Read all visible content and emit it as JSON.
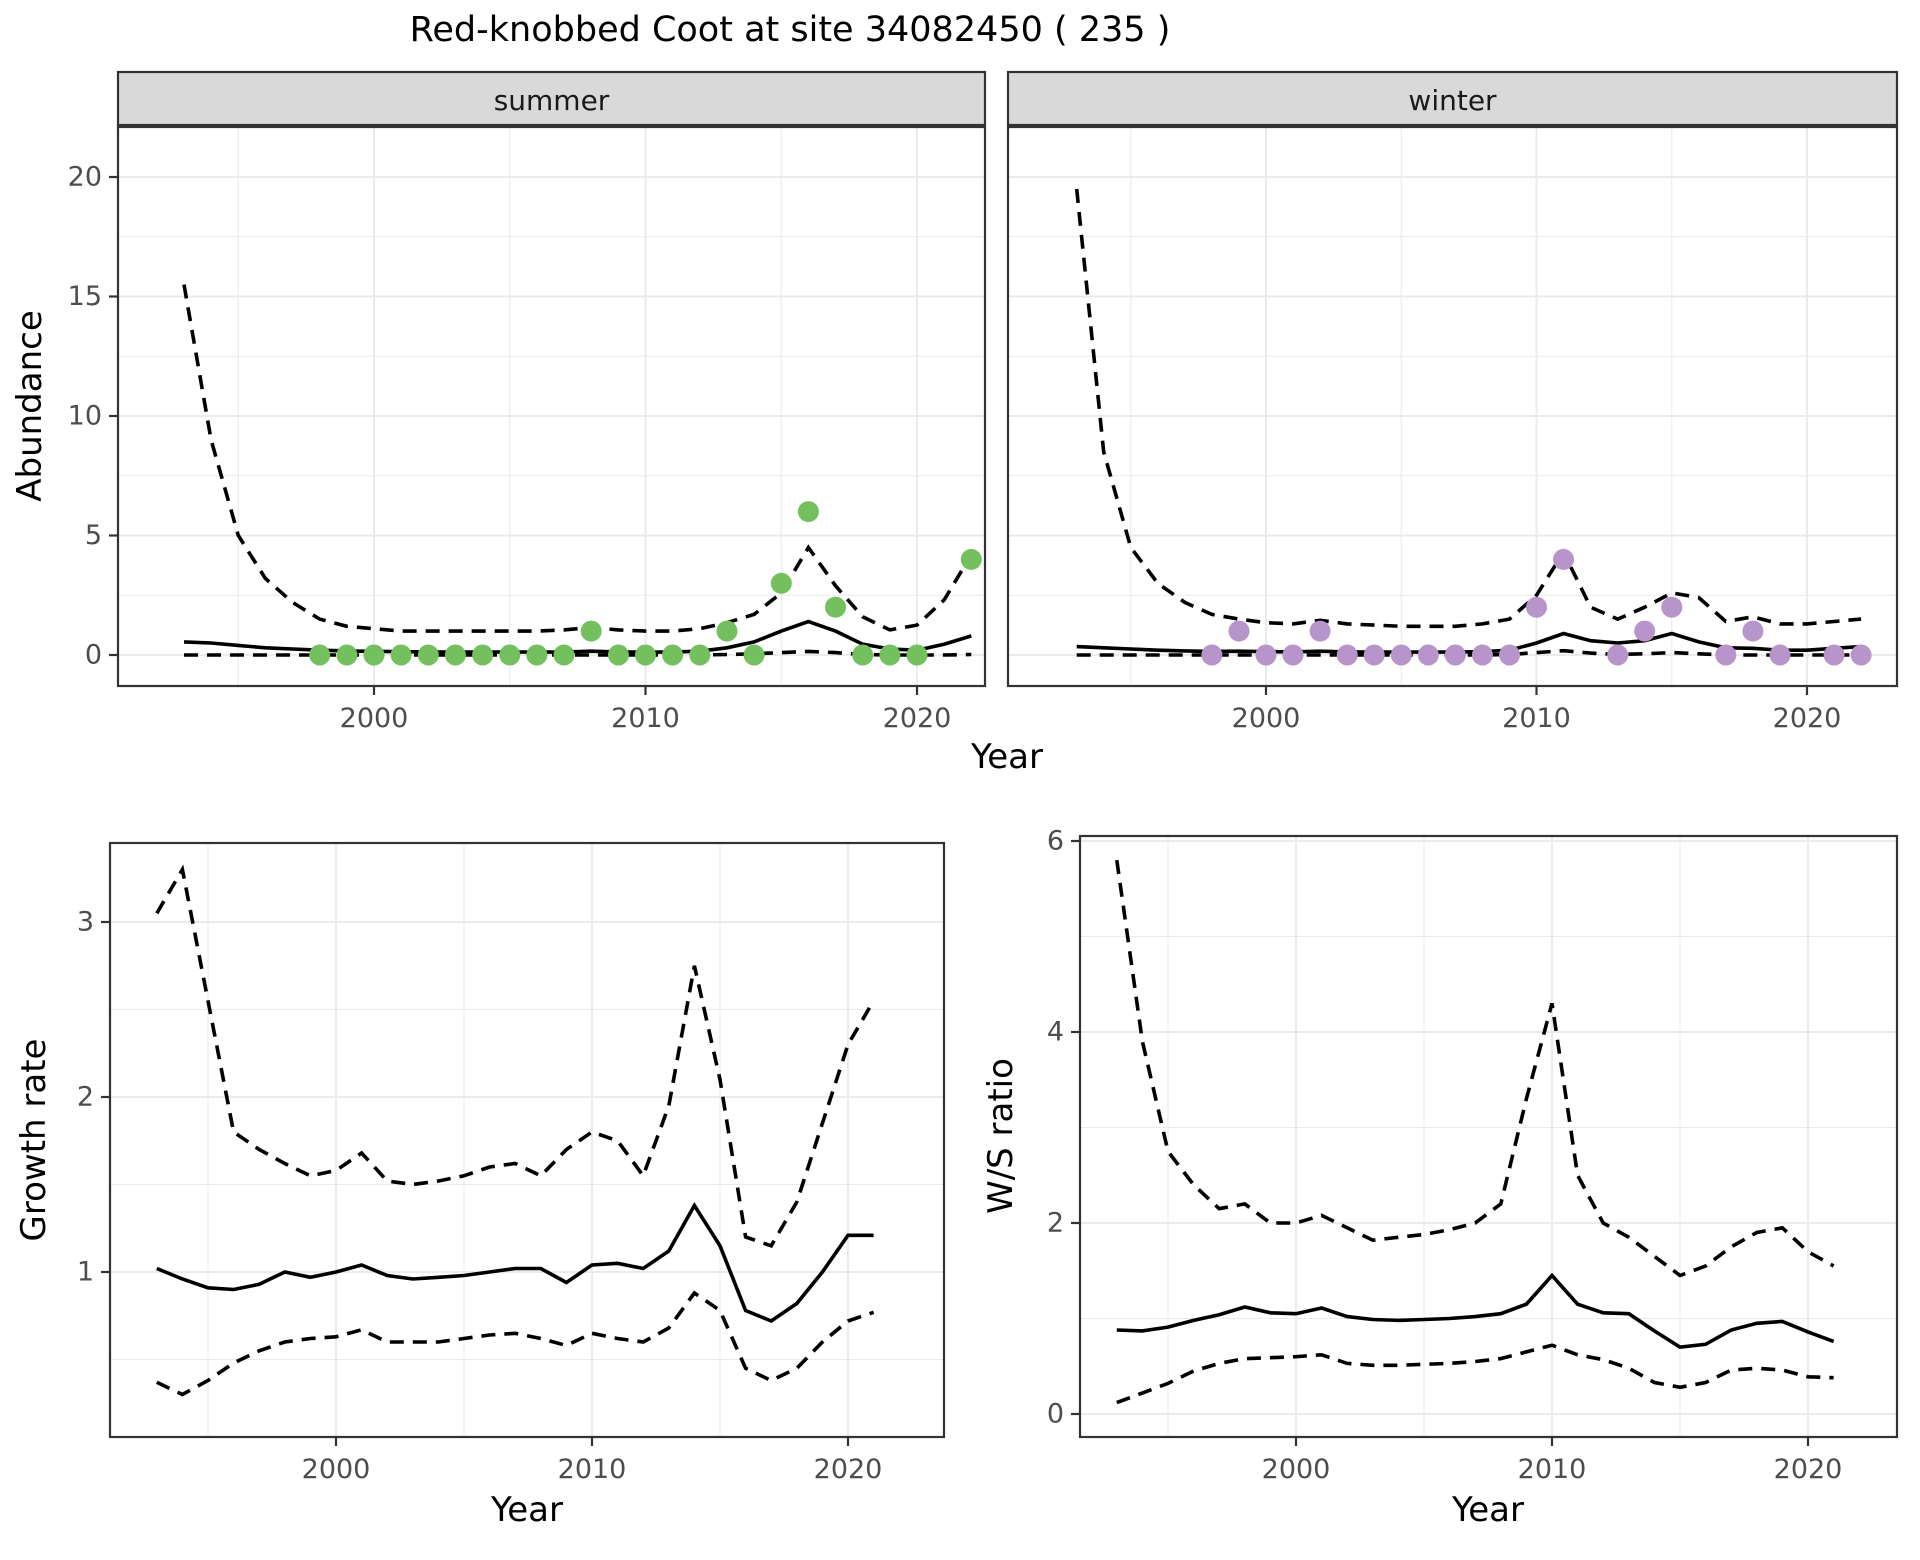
{
  "title": "Red-knobbed Coot at site 34082450 ( 235 )",
  "labels": {
    "abundance": "Abundance",
    "year": "Year",
    "growth": "Growth rate",
    "ws": "W/S ratio"
  },
  "facets": {
    "summer": "summer",
    "winter": "winter"
  },
  "axes": {
    "abundance_y": [
      "0",
      "5",
      "10",
      "15",
      "20"
    ],
    "year_x": [
      "2000",
      "2010",
      "2020"
    ],
    "growth_y": [
      "1",
      "2",
      "3"
    ],
    "ws_y": [
      "0",
      "2",
      "4",
      "6"
    ]
  },
  "colors": {
    "summer_point": "#74c05e",
    "winter_point": "#b795cb",
    "line": "#000000",
    "strip_fill": "#d9d9d9",
    "panel_border": "#333333",
    "grid": "#ebebeb",
    "tick_text": "#4d4d4d",
    "background": "#ffffff"
  },
  "chart_data": [
    {
      "type": "line",
      "facet": "summer",
      "title": "Abundance - summer",
      "xlabel": "Year",
      "ylabel": "Abundance",
      "ylim": [
        -0.8,
        22.1
      ],
      "xlim": [
        1991,
        2023
      ],
      "grid": true,
      "legend": "none",
      "years": [
        1993,
        1994,
        1995,
        1996,
        1997,
        1998,
        1999,
        2000,
        2001,
        2002,
        2003,
        2004,
        2005,
        2006,
        2007,
        2008,
        2009,
        2010,
        2011,
        2012,
        2013,
        2014,
        2015,
        2016,
        2017,
        2018,
        2019,
        2020,
        2021,
        2022
      ],
      "series": [
        {
          "name": "modelled mean",
          "style": "solid",
          "values": [
            0.55,
            0.5,
            0.4,
            0.3,
            0.25,
            0.2,
            0.17,
            0.15,
            0.14,
            0.13,
            0.12,
            0.12,
            0.12,
            0.12,
            0.12,
            0.16,
            0.13,
            0.12,
            0.12,
            0.16,
            0.3,
            0.55,
            1.0,
            1.4,
            1.0,
            0.45,
            0.25,
            0.2,
            0.45,
            0.8
          ]
        },
        {
          "name": "upper 95% CI",
          "style": "dashed",
          "values": [
            15.5,
            9.0,
            5.0,
            3.2,
            2.2,
            1.5,
            1.2,
            1.1,
            1.0,
            1.0,
            1.0,
            1.0,
            1.0,
            1.0,
            1.05,
            1.15,
            1.05,
            1.0,
            1.0,
            1.1,
            1.35,
            1.7,
            2.6,
            4.5,
            2.9,
            1.6,
            1.05,
            1.25,
            2.3,
            4.2
          ]
        },
        {
          "name": "lower 95% CI",
          "style": "dashed",
          "values": [
            0,
            0,
            0,
            0,
            0,
            0,
            0,
            0,
            0,
            0,
            0,
            0,
            0,
            0,
            0,
            0,
            0,
            0,
            0,
            0,
            0.02,
            0.05,
            0.1,
            0.15,
            0.1,
            0.02,
            0,
            0,
            0,
            0.02
          ]
        }
      ],
      "points": {
        "name": "observed counts",
        "color_key": "summer_point",
        "years": [
          1998,
          1999,
          2000,
          2001,
          2002,
          2003,
          2004,
          2005,
          2006,
          2007,
          2008,
          2009,
          2010,
          2011,
          2012,
          2013,
          2014,
          2015,
          2016,
          2017,
          2018,
          2019,
          2020,
          2022
        ],
        "values": [
          0,
          0,
          0,
          0,
          0,
          0,
          0,
          0,
          0,
          0,
          1,
          0,
          0,
          0,
          0,
          1,
          0,
          3,
          6,
          2,
          0,
          0,
          0,
          4
        ]
      }
    },
    {
      "type": "line",
      "facet": "winter",
      "title": "Abundance - winter",
      "xlabel": "Year",
      "ylabel": "Abundance",
      "ylim": [
        -0.8,
        22.1
      ],
      "xlim": [
        1991,
        2023
      ],
      "grid": true,
      "legend": "none",
      "years": [
        1993,
        1994,
        1995,
        1996,
        1997,
        1998,
        1999,
        2000,
        2001,
        2002,
        2003,
        2004,
        2005,
        2006,
        2007,
        2008,
        2009,
        2010,
        2011,
        2012,
        2013,
        2014,
        2015,
        2016,
        2017,
        2018,
        2019,
        2020,
        2021,
        2022
      ],
      "series": [
        {
          "name": "modelled mean",
          "style": "solid",
          "values": [
            0.35,
            0.3,
            0.25,
            0.2,
            0.17,
            0.15,
            0.16,
            0.14,
            0.13,
            0.16,
            0.13,
            0.12,
            0.12,
            0.12,
            0.12,
            0.14,
            0.2,
            0.5,
            0.9,
            0.6,
            0.5,
            0.6,
            0.9,
            0.55,
            0.3,
            0.28,
            0.2,
            0.2,
            0.28,
            0.35
          ]
        },
        {
          "name": "upper 95% CI",
          "style": "dashed",
          "values": [
            19.5,
            8.5,
            4.5,
            3.0,
            2.2,
            1.7,
            1.5,
            1.35,
            1.3,
            1.45,
            1.3,
            1.25,
            1.2,
            1.2,
            1.2,
            1.3,
            1.5,
            2.5,
            4.3,
            2.0,
            1.5,
            2.0,
            2.6,
            2.4,
            1.4,
            1.6,
            1.3,
            1.3,
            1.4,
            1.5
          ]
        },
        {
          "name": "lower 95% CI",
          "style": "dashed",
          "values": [
            0,
            0,
            0,
            0,
            0,
            0,
            0,
            0,
            0,
            0,
            0,
            0,
            0,
            0,
            0,
            0,
            0.02,
            0.1,
            0.18,
            0.08,
            0.02,
            0.05,
            0.1,
            0.05,
            0,
            0,
            0,
            0,
            0,
            0
          ]
        }
      ],
      "points": {
        "name": "observed counts",
        "color_key": "winter_point",
        "years": [
          1998,
          1999,
          2000,
          2001,
          2002,
          2003,
          2004,
          2005,
          2006,
          2007,
          2008,
          2009,
          2010,
          2011,
          2013,
          2014,
          2015,
          2017,
          2018,
          2019,
          2021,
          2022
        ],
        "values": [
          0,
          1,
          0,
          0,
          1,
          0,
          0,
          0,
          0,
          0,
          0,
          0,
          2,
          4,
          0,
          1,
          2,
          0,
          1,
          0,
          0,
          0
        ]
      }
    },
    {
      "type": "line",
      "facet": null,
      "title": "Growth rate",
      "xlabel": "Year",
      "ylabel": "Growth rate",
      "ylim": [
        0.06,
        3.45
      ],
      "xlim": [
        1991.2,
        2023.7
      ],
      "grid": true,
      "legend": "none",
      "years": [
        1993,
        1994,
        1995,
        1996,
        1997,
        1998,
        1999,
        2000,
        2001,
        2002,
        2003,
        2004,
        2005,
        2006,
        2007,
        2008,
        2009,
        2010,
        2011,
        2012,
        2013,
        2014,
        2015,
        2016,
        2017,
        2018,
        2019,
        2020,
        2021
      ],
      "series": [
        {
          "name": "modelled mean",
          "style": "solid",
          "values": [
            1.02,
            0.96,
            0.91,
            0.9,
            0.93,
            1.0,
            0.97,
            1.0,
            1.04,
            0.98,
            0.96,
            0.97,
            0.98,
            1.0,
            1.02,
            1.02,
            0.94,
            1.04,
            1.05,
            1.02,
            1.12,
            1.38,
            1.15,
            0.78,
            0.72,
            0.82,
            1.0,
            1.21,
            1.21
          ]
        },
        {
          "name": "upper 95% CI",
          "style": "dashed",
          "values": [
            3.05,
            3.3,
            2.55,
            1.8,
            1.7,
            1.62,
            1.55,
            1.58,
            1.68,
            1.52,
            1.5,
            1.52,
            1.55,
            1.6,
            1.62,
            1.55,
            1.7,
            1.8,
            1.75,
            1.55,
            1.95,
            2.75,
            2.1,
            1.2,
            1.15,
            1.4,
            1.85,
            2.3,
            2.55
          ]
        },
        {
          "name": "lower 95% CI",
          "style": "dashed",
          "values": [
            0.37,
            0.3,
            0.38,
            0.48,
            0.55,
            0.6,
            0.62,
            0.63,
            0.67,
            0.6,
            0.6,
            0.6,
            0.62,
            0.64,
            0.65,
            0.62,
            0.58,
            0.65,
            0.62,
            0.6,
            0.68,
            0.88,
            0.78,
            0.45,
            0.38,
            0.45,
            0.6,
            0.72,
            0.77
          ]
        }
      ],
      "points": null
    },
    {
      "type": "line",
      "facet": null,
      "title": "W/S ratio",
      "xlabel": "Year",
      "ylabel": "W/S ratio",
      "ylim": [
        -0.24,
        6.05
      ],
      "xlim": [
        1991.6,
        2023.5
      ],
      "grid": true,
      "legend": "none",
      "years": [
        1993,
        1994,
        1995,
        1996,
        1997,
        1998,
        1999,
        2000,
        2001,
        2002,
        2003,
        2004,
        2005,
        2006,
        2007,
        2008,
        2009,
        2010,
        2011,
        2012,
        2013,
        2014,
        2015,
        2016,
        2017,
        2018,
        2019,
        2020,
        2021
      ],
      "series": [
        {
          "name": "modelled mean",
          "style": "solid",
          "values": [
            0.88,
            0.87,
            0.91,
            0.98,
            1.04,
            1.12,
            1.06,
            1.05,
            1.11,
            1.02,
            0.99,
            0.98,
            0.99,
            1.0,
            1.02,
            1.05,
            1.15,
            1.45,
            1.15,
            1.06,
            1.05,
            0.87,
            0.7,
            0.73,
            0.88,
            0.95,
            0.97,
            0.86,
            0.76
          ]
        },
        {
          "name": "upper 95% CI",
          "style": "dashed",
          "values": [
            5.8,
            3.9,
            2.75,
            2.4,
            2.15,
            2.2,
            2.0,
            2.0,
            2.08,
            1.95,
            1.82,
            1.85,
            1.88,
            1.93,
            2.0,
            2.2,
            3.3,
            4.3,
            2.5,
            2.0,
            1.85,
            1.65,
            1.45,
            1.55,
            1.75,
            1.9,
            1.95,
            1.7,
            1.55
          ]
        },
        {
          "name": "lower 95% CI",
          "style": "dashed",
          "values": [
            0.12,
            0.22,
            0.32,
            0.45,
            0.53,
            0.58,
            0.59,
            0.6,
            0.62,
            0.53,
            0.51,
            0.51,
            0.52,
            0.53,
            0.55,
            0.58,
            0.65,
            0.72,
            0.62,
            0.57,
            0.48,
            0.33,
            0.28,
            0.33,
            0.46,
            0.48,
            0.46,
            0.39,
            0.38
          ]
        }
      ],
      "points": null
    }
  ]
}
